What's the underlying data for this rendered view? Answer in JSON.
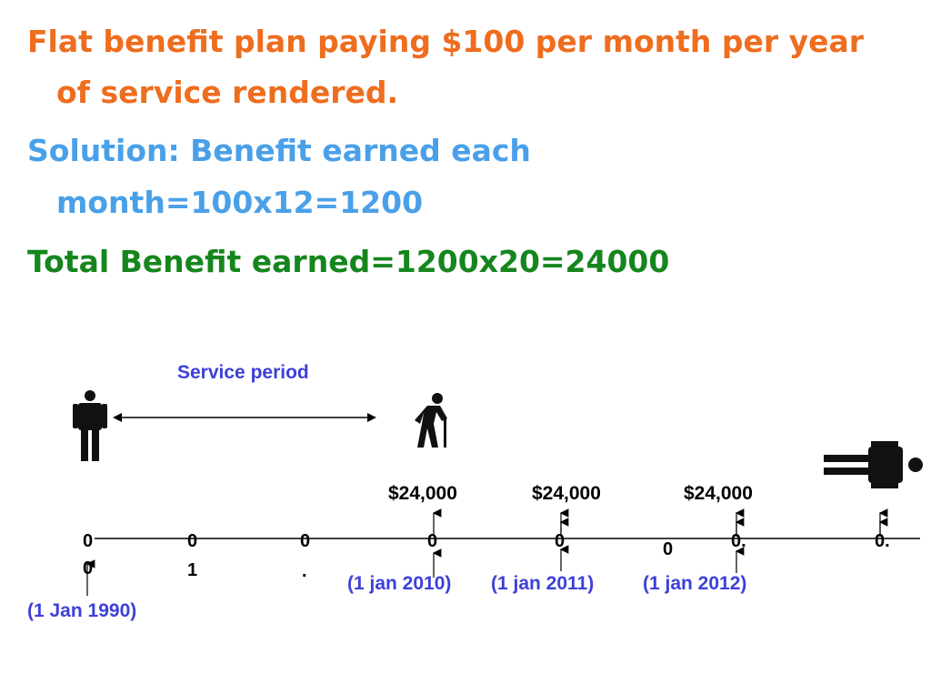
{
  "heading": {
    "problem_line1": "Flat benefit plan paying $100 per month per year",
    "problem_line2": "of service rendered.",
    "solution_line1": "Solution: Benefit earned each",
    "solution_line2": "month=100x12=1200",
    "total": "Total Benefit earned=1200x20=24000"
  },
  "diagram": {
    "service_period_label": "Service period",
    "ticks": {
      "t1_top": "0",
      "t1_bottom": "0",
      "t2_top": "0",
      "t2_bottom": "1",
      "t3_top": "0",
      "t3_bottom": ".",
      "t4_top": "0",
      "t5_top": "0",
      "t6_mid": "0",
      "t7_top": "0.",
      "t8_top": "0."
    },
    "amounts": [
      "$24,000",
      "$24,000",
      "$24,000"
    ],
    "dates": {
      "start": "(1 Jan 1990)",
      "d2010": "(1 jan 2010)",
      "d2011": "(1 jan 2011)",
      "d2012": "(1 jan 2012)"
    },
    "icons": [
      "standing-person-icon",
      "elderly-person-with-cane-icon",
      "lying-person-icon"
    ]
  }
}
